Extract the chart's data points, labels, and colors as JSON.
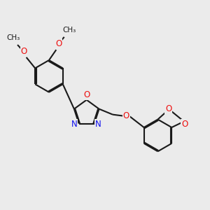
{
  "background_color": "#ebebeb",
  "bond_color": "#1a1a1a",
  "n_color": "#1010ee",
  "o_color": "#ee1010",
  "lw": 1.5,
  "dbo": 0.07,
  "figsize": [
    3.0,
    3.0
  ],
  "dpi": 100,
  "xlim": [
    -4.5,
    8.5
  ],
  "ylim": [
    -4.5,
    6.5
  ]
}
